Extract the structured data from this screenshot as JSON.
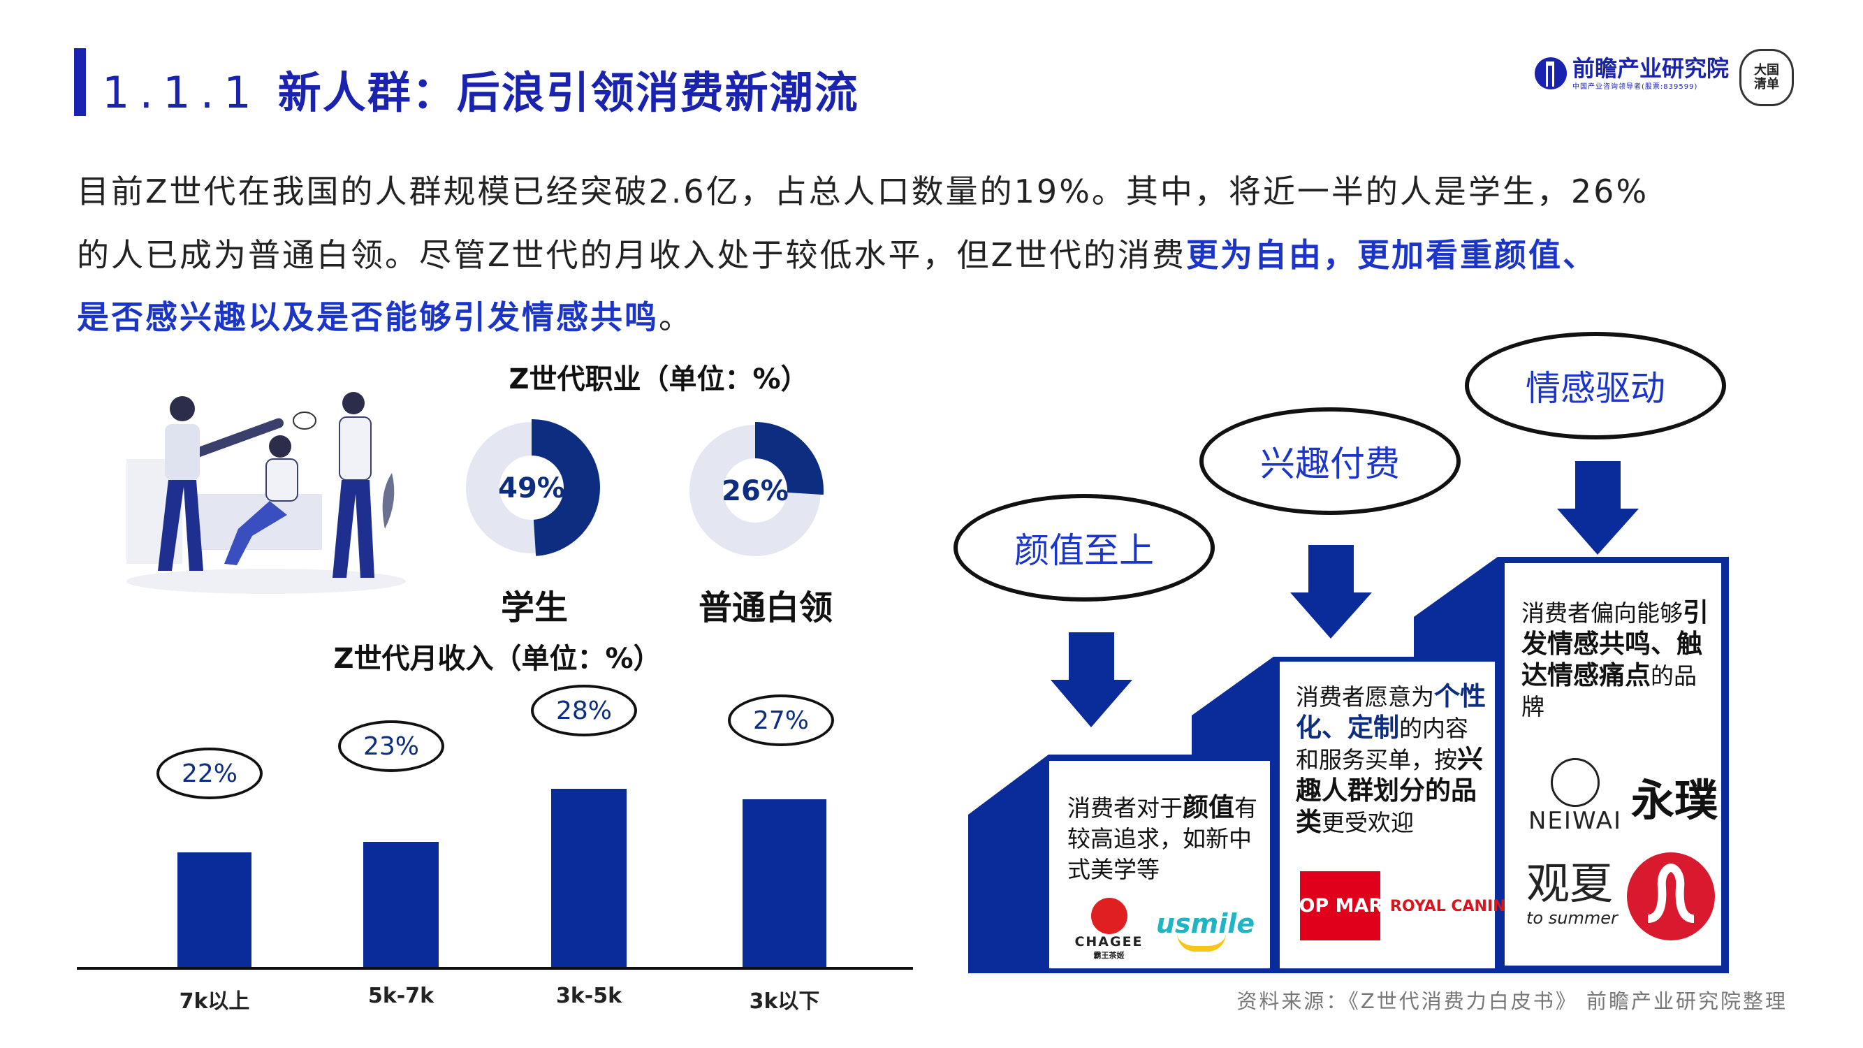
{
  "header": {
    "section_number": "1.1.1",
    "title": "新人群：后浪引领消费新潮流",
    "logo": {
      "name": "前瞻产业研究院",
      "tagline": "中国产业咨询领导者(股票:839599)",
      "seal_text": "大国清单"
    }
  },
  "intro": {
    "line1": "目前Z世代在我国的人群规模已经突破2.6亿，占总人口数量的19%。其中，将近一半的人是学生，26%",
    "line2_plain": "的人已成为普通白领。尽管Z世代的月收入处于较低水平，但Z世代的消费",
    "line2_highlight": "更为自由，更加看重颜值、",
    "line3_highlight": "是否感兴趣以及是否能够引发情感共鸣",
    "line3_end": "。"
  },
  "colors": {
    "primary": "#1a22b0",
    "donut_blue": "#0d2d80",
    "donut_light": "#e4e7f2",
    "bar": "#0a2c9a",
    "highlight": "#1a35c8",
    "staircase": "#0a2c9a"
  },
  "chart_data": [
    {
      "type": "pie",
      "title": "Z世代职业（单位：%）",
      "slices": [
        {
          "label": "学生",
          "value": 49,
          "value_label": "49%"
        },
        {
          "label": "普通白领",
          "value": 26,
          "value_label": "26%"
        }
      ]
    },
    {
      "type": "bar",
      "title": "Z世代月收入（单位：%）",
      "categories": [
        "7k以上",
        "5k-7k",
        "3k-5k",
        "3k以下"
      ],
      "values": [
        22,
        23,
        28,
        27
      ],
      "data_labels": [
        "22%",
        "23%",
        "28%",
        "27%"
      ],
      "ylim": [
        11,
        32
      ],
      "grid": false
    }
  ],
  "stairs": [
    {
      "tag": "颜值至上",
      "text_parts": [
        {
          "t": "消费者对于",
          "s": "n"
        },
        {
          "t": "颜值",
          "s": "b"
        },
        {
          "t": "有较高追求，如新中式美学等",
          "s": "n"
        }
      ],
      "brands": [
        "CHAGEE",
        "霸王茶姬",
        "usmile"
      ]
    },
    {
      "tag": "兴趣付费",
      "text_parts": [
        {
          "t": "消费者愿意为",
          "s": "n"
        },
        {
          "t": "个性化、定制",
          "s": "bl"
        },
        {
          "t": "的内容和服务买单，按",
          "s": "n"
        },
        {
          "t": "兴趣人群划分的品类",
          "s": "b"
        },
        {
          "t": "更受欢迎",
          "s": "n"
        }
      ],
      "brands": [
        "POP MART",
        "ROYAL CANIN"
      ]
    },
    {
      "tag": "情感驱动",
      "text_parts": [
        {
          "t": "消费者偏向能够",
          "s": "n"
        },
        {
          "t": "引发情感共鸣、触达情感痛点",
          "s": "b"
        },
        {
          "t": "的品牌",
          "s": "n"
        }
      ],
      "brands": [
        "NEIWAI",
        "永璞",
        "观夏",
        "to summer"
      ]
    }
  ],
  "footer": {
    "source": "资料来源：《Z世代消费力白皮书》 前瞻产业研究院整理"
  }
}
